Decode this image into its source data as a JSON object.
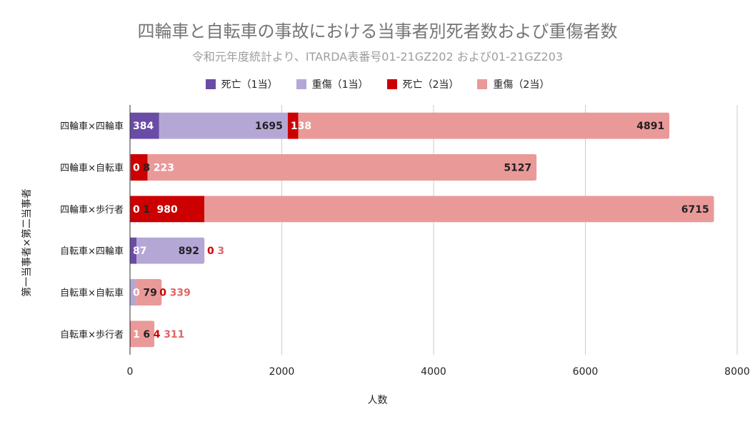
{
  "chart_data": {
    "type": "bar",
    "orientation": "horizontal",
    "stacked": true,
    "title": "四輪車と自転車の事故における当事者別死者数および重傷者数",
    "subtitle": "令和元年度統計より、ITARDA表番号01-21GZ202 および01-21GZ203",
    "xlabel": "人数",
    "ylabel": "第一当事者×第二当事者",
    "xlim": [
      0,
      8000
    ],
    "xticks": [
      0,
      2000,
      4000,
      6000,
      8000
    ],
    "grid": true,
    "legend_position": "top",
    "categories": [
      "四輪車×四輪車",
      "四輪車×自転車",
      "四輪車×歩行者",
      "自転車×四輪車",
      "自転車×自転車",
      "自転車×歩行者"
    ],
    "series": [
      {
        "name": "死亡（1当）",
        "color": "#6a4ca6",
        "values": [
          384,
          0,
          0,
          87,
          0,
          1
        ]
      },
      {
        "name": "重傷（1当）",
        "color": "#b4a7d6",
        "values": [
          1695,
          8,
          1,
          892,
          79,
          6
        ]
      },
      {
        "name": "死亡（2当）",
        "color": "#cc0000",
        "values": [
          138,
          223,
          980,
          0,
          0,
          4
        ]
      },
      {
        "name": "重傷（2当）",
        "color": "#ea9999",
        "values": [
          4891,
          5127,
          6715,
          3,
          339,
          311
        ]
      }
    ]
  }
}
